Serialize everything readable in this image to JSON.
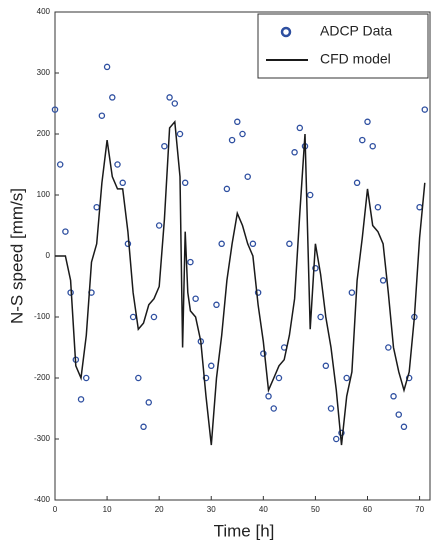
{
  "chart_data": {
    "type": "scatter",
    "xlabel": "Time [h]",
    "ylabel": "N-S speed [mm/s]",
    "xlim": [
      0,
      72
    ],
    "xticks": [
      0,
      10,
      20,
      30,
      40,
      50,
      60,
      70
    ],
    "ylim": [
      -400,
      400
    ],
    "yticks": [
      -400,
      -300,
      -200,
      -100,
      0,
      100,
      200,
      300,
      400
    ],
    "legend": "upper right",
    "series": [
      {
        "name": "ADCP Data",
        "type": "scatter",
        "color": "#2e4fa0",
        "x": [
          0,
          1,
          2,
          3,
          4,
          5,
          6,
          7,
          8,
          9,
          10,
          11,
          12,
          13,
          14,
          15,
          16,
          17,
          18,
          19,
          20,
          21,
          22,
          23,
          24,
          25,
          26,
          27,
          28,
          29,
          30,
          31,
          32,
          33,
          34,
          35,
          36,
          37,
          38,
          39,
          40,
          41,
          42,
          43,
          44,
          45,
          46,
          47,
          48,
          49,
          50,
          51,
          52,
          53,
          54,
          55,
          56,
          57,
          58,
          59,
          60,
          61,
          62,
          63,
          64,
          65,
          66,
          67,
          68,
          69,
          70,
          71
        ],
        "values": [
          240,
          150,
          40,
          -60,
          -170,
          -235,
          -200,
          -60,
          80,
          230,
          310,
          260,
          150,
          120,
          20,
          -100,
          -200,
          -280,
          -240,
          -100,
          50,
          180,
          260,
          250,
          200,
          120,
          -10,
          -70,
          -140,
          -200,
          -180,
          -80,
          20,
          110,
          190,
          220,
          200,
          130,
          20,
          -60,
          -160,
          -230,
          -250,
          -200,
          -150,
          20,
          170,
          210,
          180,
          100,
          -20,
          -100,
          -180,
          -250,
          -300,
          -290,
          -200,
          -60,
          120,
          190,
          220,
          180,
          80,
          -40,
          -150,
          -230,
          -260,
          -280,
          -200,
          -100,
          80,
          240
        ]
      },
      {
        "name": "CFD model",
        "type": "line",
        "color": "#1a1a1a",
        "x": [
          0,
          2,
          3,
          4,
          5,
          6,
          7,
          8,
          9,
          10,
          11,
          12,
          13,
          14,
          15,
          16,
          17,
          18,
          19,
          20,
          21,
          22,
          23,
          24,
          24.5,
          25,
          25.5,
          26,
          27,
          28,
          29,
          30,
          31,
          32,
          33,
          34,
          35,
          36,
          37,
          38,
          39,
          40,
          41,
          42,
          43,
          44,
          45,
          46,
          47,
          48,
          49,
          50,
          51,
          52,
          53,
          54,
          55,
          56,
          57,
          58,
          59,
          60,
          61,
          62,
          63,
          64,
          65,
          66,
          67,
          68,
          69,
          70,
          71
        ],
        "values": [
          0,
          0,
          -40,
          -180,
          -200,
          -130,
          -10,
          20,
          120,
          190,
          130,
          110,
          110,
          40,
          -60,
          -120,
          -110,
          -80,
          -70,
          -50,
          60,
          210,
          220,
          130,
          -150,
          40,
          -60,
          -90,
          -100,
          -140,
          -230,
          -310,
          -200,
          -130,
          -40,
          20,
          70,
          50,
          20,
          0,
          -80,
          -140,
          -220,
          -200,
          -180,
          -170,
          -130,
          -70,
          70,
          200,
          -120,
          20,
          -30,
          -100,
          -150,
          -220,
          -310,
          -230,
          -190,
          -40,
          30,
          110,
          50,
          40,
          20,
          -60,
          -150,
          -190,
          -220,
          -190,
          -100,
          30,
          120
        ]
      }
    ]
  }
}
